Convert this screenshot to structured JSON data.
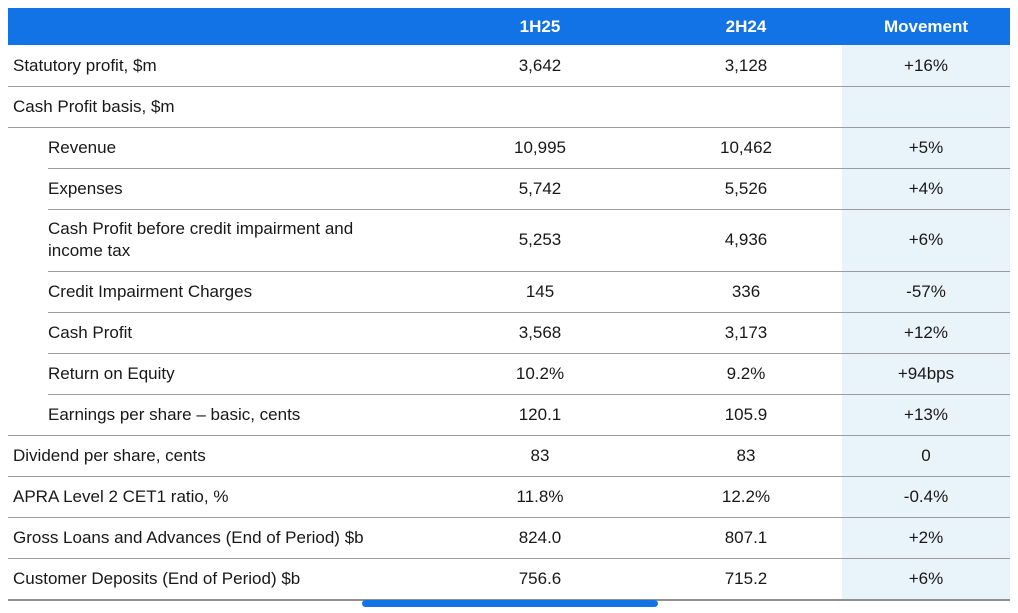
{
  "colors": {
    "header_blue": "#1173e6",
    "movement_band_blue": "#e9f3fa",
    "separator_gray": "#9c9c9c",
    "text_dark": "#181818",
    "header_text": "#ffffff"
  },
  "chart_data": {
    "type": "table",
    "title": "Financial results summary table",
    "columns": [
      "",
      "1H25",
      "2H24",
      "Movement"
    ],
    "rows": [
      {
        "label": "Statutory profit, $m",
        "values": [
          "3,642",
          "3,128"
        ],
        "movement": "+16%",
        "indent": false,
        "separator": "none"
      },
      {
        "label": "Cash Profit basis, $m",
        "values": [
          "",
          ""
        ],
        "movement": "",
        "indent": false,
        "separator": "full"
      },
      {
        "label": "Revenue",
        "values": [
          "10,995",
          "10,462"
        ],
        "movement": "+5%",
        "indent": true,
        "separator": "full"
      },
      {
        "label": "Expenses",
        "values": [
          "5,742",
          "5,526"
        ],
        "movement": "+4%",
        "indent": true,
        "separator": "indent"
      },
      {
        "label": "Cash Profit before credit impairment and income tax",
        "values": [
          "5,253",
          "4,936"
        ],
        "movement": "+6%",
        "indent": true,
        "separator": "indent"
      },
      {
        "label": "Credit Impairment Charges",
        "values": [
          "145",
          "336"
        ],
        "movement": "-57%",
        "indent": true,
        "separator": "indent"
      },
      {
        "label": "Cash Profit",
        "values": [
          "3,568",
          "3,173"
        ],
        "movement": "+12%",
        "indent": true,
        "separator": "indent"
      },
      {
        "label": "Return on Equity",
        "values": [
          "10.2%",
          "9.2%"
        ],
        "movement": "+94bps",
        "indent": true,
        "separator": "indent"
      },
      {
        "label": "Earnings per share – basic, cents",
        "values": [
          "120.1",
          "105.9"
        ],
        "movement": "+13%",
        "indent": true,
        "separator": "indent"
      },
      {
        "label": "Dividend per share, cents",
        "values": [
          "83",
          "83"
        ],
        "movement": "0",
        "indent": false,
        "separator": "full"
      },
      {
        "label": "APRA Level 2 CET1 ratio, %",
        "values": [
          "11.8%",
          "12.2%"
        ],
        "movement": "-0.4%",
        "indent": false,
        "separator": "full"
      },
      {
        "label": "Gross Loans and Advances (End of Period) $b",
        "values": [
          "824.0",
          "807.1"
        ],
        "movement": "+2%",
        "indent": false,
        "separator": "full"
      },
      {
        "label": "Customer Deposits (End of Period) $b",
        "values": [
          "756.6",
          "715.2"
        ],
        "movement": "+6%",
        "indent": false,
        "separator": "full"
      }
    ]
  },
  "footer": {
    "accent_bar": "decorative-blue-bar"
  }
}
